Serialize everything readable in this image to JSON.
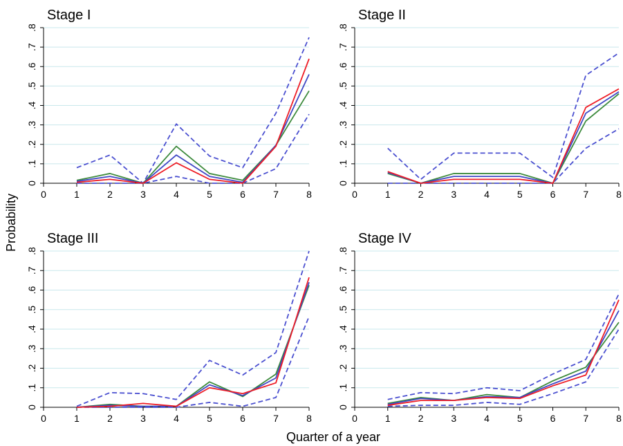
{
  "figure": {
    "ylabel": "Probability",
    "xlabel": "Quarter of a year"
  },
  "colors": {
    "red": "#ee1c25",
    "blue": "#3f47c4",
    "green": "#3c8a3c",
    "ci": "#4a4fd0",
    "grid": "#c9e8ec",
    "axis": "#000000"
  },
  "chart_data": [
    {
      "type": "line",
      "title": "Stage I",
      "x": [
        1,
        2,
        3,
        4,
        5,
        6,
        7,
        8
      ],
      "xticks": [
        "0",
        "1",
        "2",
        "3",
        "4",
        "5",
        "6",
        "7",
        "8"
      ],
      "yticks": [
        "0",
        ".1",
        ".2",
        ".3",
        ".4",
        ".5",
        ".6",
        ".7",
        ".8"
      ],
      "xlim": [
        0,
        8
      ],
      "ylim": [
        0,
        0.8
      ],
      "grid": true,
      "series": [
        {
          "style": "solid",
          "color": "red",
          "values": [
            0.005,
            0.02,
            0.0,
            0.105,
            0.02,
            0.0,
            0.19,
            0.64
          ]
        },
        {
          "style": "solid",
          "color": "blue",
          "values": [
            0.01,
            0.035,
            0.0,
            0.145,
            0.035,
            0.005,
            0.195,
            0.56
          ]
        },
        {
          "style": "solid",
          "color": "green",
          "values": [
            0.015,
            0.05,
            0.0,
            0.19,
            0.05,
            0.015,
            0.195,
            0.475
          ]
        },
        {
          "style": "dashed",
          "color": "ci",
          "values": [
            0.08,
            0.145,
            0.0,
            0.305,
            0.14,
            0.08,
            0.36,
            0.75
          ]
        },
        {
          "style": "dashed",
          "color": "ci",
          "values": [
            0.0,
            0.0,
            0.0,
            0.035,
            0.0,
            0.0,
            0.075,
            0.355
          ]
        }
      ]
    },
    {
      "type": "line",
      "title": "Stage II",
      "x": [
        1,
        2,
        3,
        4,
        5,
        6,
        7,
        8
      ],
      "xticks": [
        "0",
        "1",
        "2",
        "3",
        "4",
        "5",
        "6",
        "7",
        "8"
      ],
      "yticks": [
        "0",
        ".1",
        ".2",
        ".3",
        ".4",
        ".5",
        ".6",
        ".7",
        ".8"
      ],
      "xlim": [
        0,
        8
      ],
      "ylim": [
        0,
        0.8
      ],
      "grid": true,
      "series": [
        {
          "style": "solid",
          "color": "red",
          "values": [
            0.06,
            0.0,
            0.02,
            0.02,
            0.02,
            0.0,
            0.39,
            0.485
          ]
        },
        {
          "style": "solid",
          "color": "blue",
          "values": [
            0.055,
            0.0,
            0.035,
            0.035,
            0.035,
            0.0,
            0.36,
            0.47
          ]
        },
        {
          "style": "solid",
          "color": "green",
          "values": [
            0.05,
            0.0,
            0.05,
            0.05,
            0.05,
            0.0,
            0.32,
            0.46
          ]
        },
        {
          "style": "dashed",
          "color": "ci",
          "values": [
            0.18,
            0.02,
            0.155,
            0.155,
            0.155,
            0.03,
            0.555,
            0.67
          ]
        },
        {
          "style": "dashed",
          "color": "ci",
          "values": [
            0.0,
            0.0,
            0.0,
            0.0,
            0.0,
            0.0,
            0.18,
            0.28
          ]
        }
      ]
    },
    {
      "type": "line",
      "title": "Stage III",
      "x": [
        1,
        2,
        3,
        4,
        5,
        6,
        7,
        8
      ],
      "xticks": [
        "0",
        "1",
        "2",
        "3",
        "4",
        "5",
        "6",
        "7",
        "8"
      ],
      "yticks": [
        "0",
        ".1",
        ".2",
        ".3",
        ".4",
        ".5",
        ".6",
        ".7",
        ".8"
      ],
      "xlim": [
        0,
        8
      ],
      "ylim": [
        0,
        0.8
      ],
      "grid": true,
      "series": [
        {
          "style": "solid",
          "color": "red",
          "values": [
            0.0,
            0.005,
            0.02,
            0.005,
            0.1,
            0.07,
            0.125,
            0.665
          ]
        },
        {
          "style": "solid",
          "color": "blue",
          "values": [
            0.0,
            0.01,
            0.005,
            0.005,
            0.115,
            0.06,
            0.15,
            0.64
          ]
        },
        {
          "style": "solid",
          "color": "green",
          "values": [
            0.0,
            0.015,
            0.005,
            0.005,
            0.13,
            0.055,
            0.17,
            0.625
          ]
        },
        {
          "style": "dashed",
          "color": "ci",
          "values": [
            0.005,
            0.075,
            0.07,
            0.04,
            0.24,
            0.165,
            0.28,
            0.8
          ]
        },
        {
          "style": "dashed",
          "color": "ci",
          "values": [
            0.0,
            0.0,
            0.0,
            0.0,
            0.025,
            0.005,
            0.05,
            0.465
          ]
        }
      ]
    },
    {
      "type": "line",
      "title": "Stage IV",
      "x": [
        1,
        2,
        3,
        4,
        5,
        6,
        7,
        8
      ],
      "xticks": [
        "0",
        "1",
        "2",
        "3",
        "4",
        "5",
        "6",
        "7",
        "8"
      ],
      "yticks": [
        "0",
        ".1",
        ".2",
        ".3",
        ".4",
        ".5",
        ".6",
        ".7",
        ".8"
      ],
      "xlim": [
        0,
        8
      ],
      "ylim": [
        0,
        0.8
      ],
      "grid": true,
      "series": [
        {
          "style": "solid",
          "color": "red",
          "values": [
            0.01,
            0.035,
            0.035,
            0.05,
            0.045,
            0.11,
            0.165,
            0.55
          ]
        },
        {
          "style": "solid",
          "color": "blue",
          "values": [
            0.015,
            0.045,
            0.035,
            0.055,
            0.05,
            0.12,
            0.185,
            0.495
          ]
        },
        {
          "style": "solid",
          "color": "green",
          "values": [
            0.02,
            0.05,
            0.035,
            0.065,
            0.05,
            0.135,
            0.205,
            0.435
          ]
        },
        {
          "style": "dashed",
          "color": "ci",
          "values": [
            0.04,
            0.075,
            0.07,
            0.1,
            0.085,
            0.17,
            0.245,
            0.58
          ]
        },
        {
          "style": "dashed",
          "color": "ci",
          "values": [
            0.005,
            0.01,
            0.01,
            0.025,
            0.015,
            0.07,
            0.13,
            0.4
          ]
        }
      ]
    }
  ]
}
